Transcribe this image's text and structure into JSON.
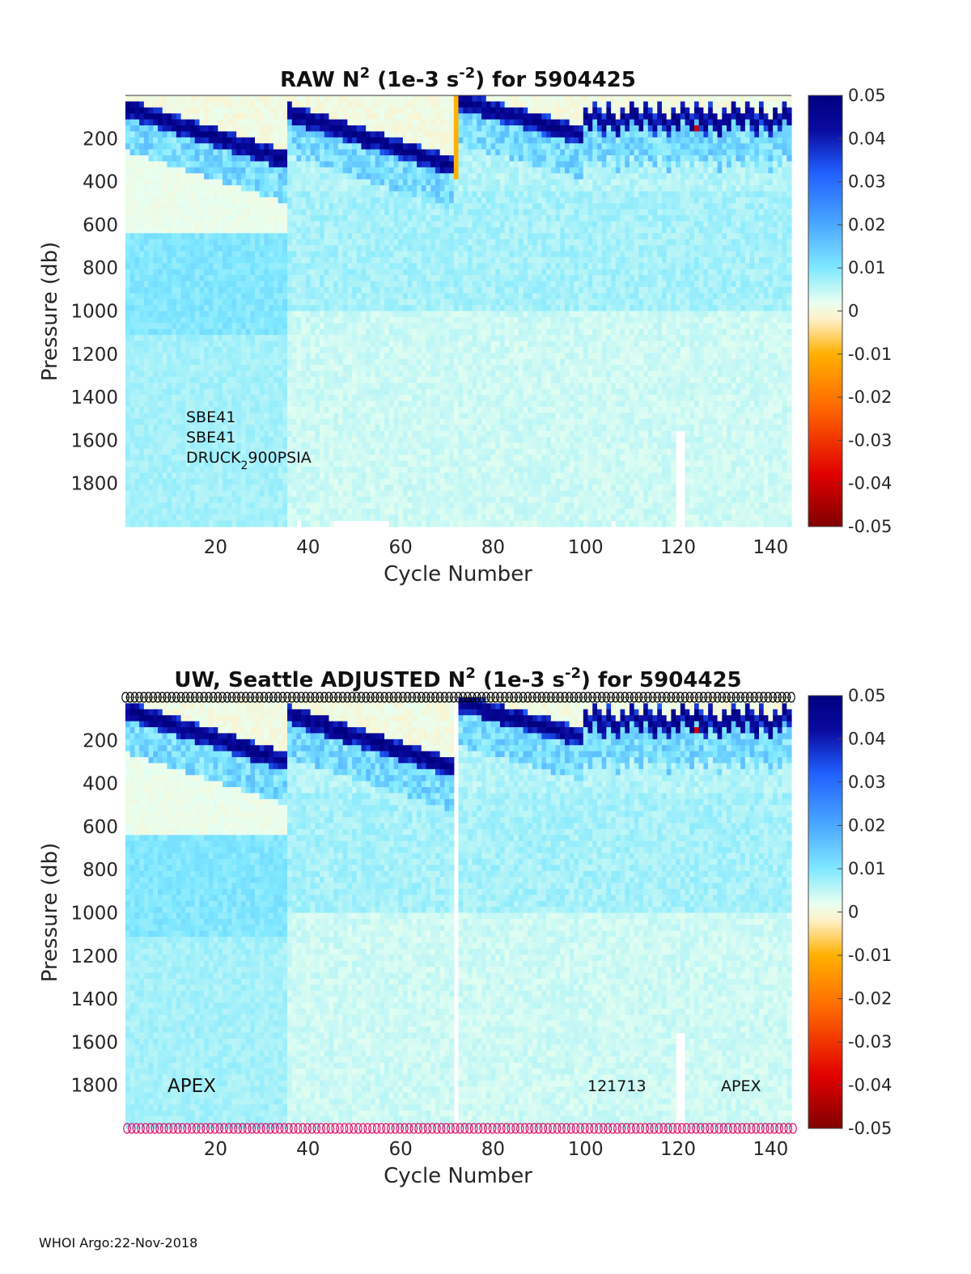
{
  "footer": "WHOI Argo:22-Nov-2018",
  "colorbar": {
    "ticks": [
      "0.05",
      "0.04",
      "0.03",
      "0.02",
      "0.01",
      "0",
      "-0.01",
      "-0.02",
      "-0.03",
      "-0.04",
      "-0.05"
    ],
    "range": [
      -0.05,
      0.05
    ],
    "colormap": [
      "#7f0000",
      "#e00000",
      "#ff6a00",
      "#ffb000",
      "#fff0c8",
      "#e8fff0",
      "#7fe8ff",
      "#4aa8ff",
      "#2060ff",
      "#0a0aa0",
      "#000080"
    ]
  },
  "chart_data": [
    {
      "type": "heatmap",
      "title_main": "RAW N",
      "title_sup": "2",
      "title_mid": " (1e-3 s",
      "title_sup2": "-2",
      "title_end": ") for 5904425",
      "xlabel": "Cycle Number",
      "ylabel": "Pressure (db)",
      "xlim": [
        1,
        144
      ],
      "ylim": [
        0,
        2000
      ],
      "x_ticks": [
        "20",
        "40",
        "60",
        "80",
        "100",
        "120",
        "140"
      ],
      "y_ticks": [
        "200",
        "400",
        "600",
        "800",
        "1000",
        "1200",
        "1400",
        "1600",
        "1800"
      ],
      "annotations": [
        "SBE41",
        "SBE41",
        "DRUCK",
        "2",
        "900PSIA"
      ],
      "description_values": {
        "deep_value_approx": 0.004,
        "thermocline_value_approx": 0.05
      }
    },
    {
      "type": "heatmap",
      "title_main": "UW, Seattle  ADJUSTED N",
      "title_sup": "2",
      "title_mid": " (1e-3 s",
      "title_sup2": "-2",
      "title_end": ") for 5904425",
      "xlabel": "Cycle Number",
      "ylabel": "Pressure (db)",
      "xlim": [
        1,
        144
      ],
      "ylim": [
        0,
        2000
      ],
      "x_ticks": [
        "20",
        "40",
        "60",
        "80",
        "100",
        "120",
        "140"
      ],
      "y_ticks": [
        "200",
        "400",
        "600",
        "800",
        "1000",
        "1200",
        "1400",
        "1600",
        "1800"
      ],
      "annotations": [
        "APEX",
        "121713",
        "APEX"
      ],
      "missing_cycle": 72,
      "top_marker_color": "#000000",
      "bottom_marker_color": "#e0106a"
    }
  ]
}
